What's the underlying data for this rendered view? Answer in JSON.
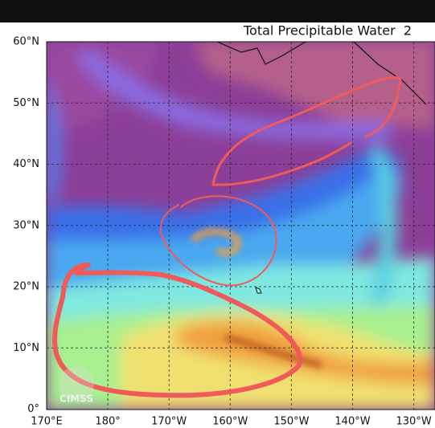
{
  "header": {
    "title": "Total Precipitable Water  2"
  },
  "axes": {
    "lat_labels": [
      "60°N",
      "50°N",
      "40°N",
      "30°N",
      "20°N",
      "10°N",
      "0°"
    ],
    "lon_labels": [
      "170°E",
      "180°",
      "170°W",
      "160°W",
      "150°W",
      "140°W",
      "130°W"
    ]
  },
  "logo": {
    "text": "CIMSS"
  }
}
